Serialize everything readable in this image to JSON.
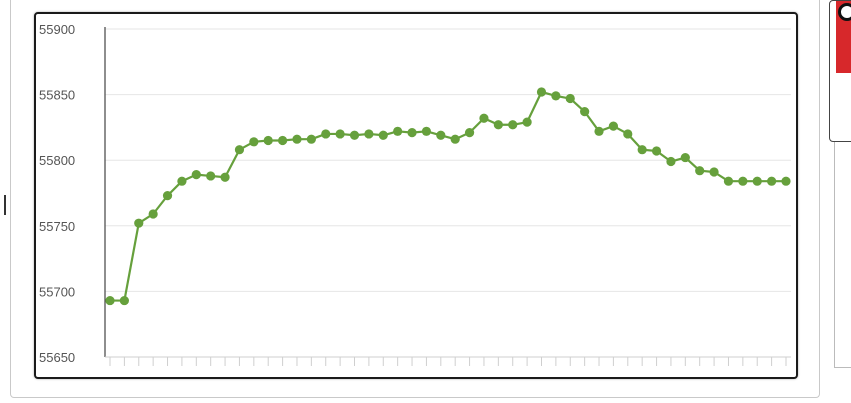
{
  "chart_data": {
    "type": "line",
    "title": "",
    "xlabel": "",
    "ylabel": "",
    "ylim": [
      55650,
      55900
    ],
    "yticks": [
      55650,
      55700,
      55750,
      55800,
      55850,
      55900
    ],
    "x": [
      1,
      2,
      3,
      4,
      5,
      6,
      7,
      8,
      9,
      10,
      11,
      12,
      13,
      14,
      15,
      16,
      17,
      18,
      19,
      20,
      21,
      22,
      23,
      24,
      25,
      26,
      27,
      28,
      29,
      30,
      31,
      32,
      33,
      34,
      35,
      36,
      37,
      38,
      39,
      40,
      41,
      42,
      43,
      44,
      45,
      46,
      47,
      48
    ],
    "series": [
      {
        "color": "#66a03c",
        "values": [
          55693,
          55693,
          55752,
          55759,
          55773,
          55784,
          55789,
          55788,
          55787,
          55808,
          55814,
          55815,
          55815,
          55816,
          55816,
          55820,
          55820,
          55819,
          55820,
          55819,
          55822,
          55821,
          55822,
          55819,
          55816,
          55821,
          55832,
          55827,
          55827,
          55829,
          55852,
          55849,
          55847,
          55837,
          55822,
          55826,
          55820,
          55808,
          55807,
          55799,
          55802,
          55792,
          55791,
          55784,
          55784,
          55784,
          55784,
          55784
        ]
      }
    ],
    "grid": true,
    "legend": "none"
  },
  "side_panel": {
    "glyph_top": "☷",
    "glyph_bottom": "☰"
  }
}
